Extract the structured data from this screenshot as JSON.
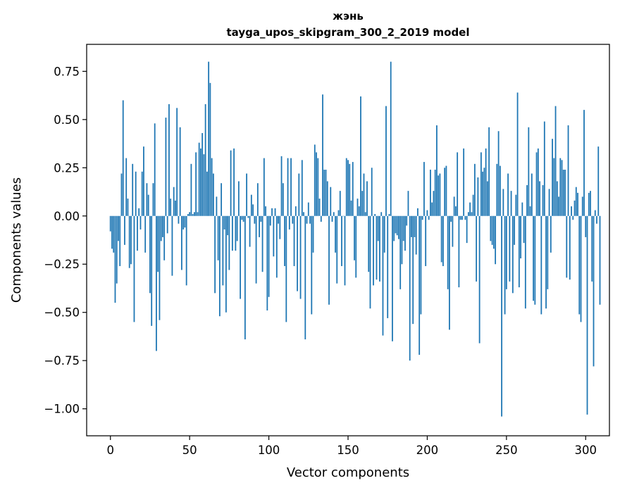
{
  "chart_data": {
    "type": "bar",
    "title": "жэнь",
    "subtitle": "tayga_upos_skipgram_300_2_2019 model",
    "xlabel": "Vector components",
    "ylabel": "Components values",
    "xlim": [
      -15,
      315
    ],
    "ylim": [
      -1.14,
      0.89
    ],
    "x_ticks": [
      0,
      50,
      100,
      150,
      200,
      250,
      300
    ],
    "y_ticks": [
      -1.0,
      -0.75,
      -0.5,
      -0.25,
      0.0,
      0.25,
      0.5,
      0.75
    ],
    "y_tick_labels": [
      "−1.00",
      "−0.75",
      "−0.50",
      "−0.25",
      "0.00",
      "0.25",
      "0.50",
      "0.75"
    ],
    "bar_color": "#1f77b4",
    "grid": false,
    "values": [
      -0.08,
      -0.17,
      -0.19,
      -0.45,
      -0.35,
      -0.13,
      -0.26,
      0.22,
      0.6,
      -0.15,
      0.3,
      0.09,
      -0.27,
      -0.25,
      0.27,
      -0.55,
      0.23,
      -0.18,
      0.04,
      -0.07,
      0.23,
      0.36,
      -0.19,
      0.17,
      0.11,
      -0.4,
      -0.57,
      0.17,
      0.48,
      -0.7,
      -0.29,
      -0.54,
      -0.13,
      -0.11,
      -0.23,
      0.51,
      -0.09,
      0.58,
      0.09,
      -0.31,
      0.15,
      0.08,
      0.56,
      -0.04,
      0.46,
      -0.28,
      -0.07,
      -0.06,
      -0.36,
      0.01,
      0.02,
      0.27,
      0.01,
      0.02,
      0.33,
      0.02,
      0.38,
      0.35,
      0.43,
      0.32,
      0.58,
      0.23,
      0.8,
      0.69,
      0.3,
      0.22,
      -0.4,
      0.1,
      -0.23,
      -0.52,
      0.17,
      -0.36,
      -0.07,
      -0.5,
      -0.1,
      -0.28,
      0.34,
      -0.18,
      0.35,
      -0.18,
      -0.13,
      0.18,
      -0.43,
      -0.02,
      -0.03,
      -0.64,
      0.22,
      -0.01,
      -0.16,
      0.11,
      0.06,
      -0.04,
      -0.35,
      0.17,
      -0.11,
      -0.03,
      -0.29,
      0.3,
      0.05,
      -0.49,
      -0.42,
      -0.05,
      0.04,
      -0.21,
      0.04,
      -0.32,
      -0.04,
      -0.12,
      0.31,
      0.17,
      -0.26,
      -0.55,
      0.3,
      -0.07,
      0.3,
      -0.04,
      -0.26,
      0.05,
      -0.39,
      0.22,
      -0.43,
      0.29,
      0.02,
      -0.64,
      -0.04,
      0.07,
      -0.04,
      -0.51,
      -0.19,
      0.37,
      0.33,
      0.3,
      0.09,
      -0.03,
      0.63,
      0.24,
      0.24,
      0.18,
      -0.46,
      0.15,
      -0.03,
      0.02,
      -0.19,
      -0.35,
      0.03,
      0.13,
      -0.26,
      0.0,
      -0.36,
      0.3,
      0.29,
      0.27,
      0.08,
      0.28,
      -0.23,
      -0.32,
      0.09,
      0.05,
      0.62,
      0.13,
      0.22,
      0.02,
      0.18,
      -0.29,
      -0.48,
      0.25,
      -0.36,
      0.01,
      -0.33,
      -0.13,
      -0.34,
      0.02,
      -0.62,
      -0.19,
      0.57,
      -0.53,
      0.01,
      0.8,
      -0.65,
      -0.13,
      -0.09,
      -0.1,
      -0.12,
      -0.38,
      -0.25,
      -0.13,
      -0.18,
      -0.05,
      0.13,
      -0.75,
      -0.11,
      -0.56,
      -0.11,
      -0.2,
      0.04,
      -0.72,
      -0.51,
      -0.02,
      0.28,
      -0.26,
      0.03,
      -0.02,
      0.24,
      0.07,
      0.13,
      0.24,
      0.47,
      0.21,
      0.22,
      -0.24,
      -0.26,
      0.25,
      0.26,
      -0.38,
      -0.59,
      -0.03,
      -0.16,
      0.1,
      0.05,
      0.33,
      -0.37,
      -0.02,
      -0.02,
      0.35,
      -0.02,
      -0.14,
      0.02,
      0.07,
      0.02,
      0.11,
      0.27,
      -0.34,
      0.2,
      -0.66,
      0.33,
      0.23,
      0.25,
      0.35,
      0.18,
      0.46,
      -0.13,
      -0.15,
      -0.17,
      -0.25,
      0.27,
      0.44,
      0.26,
      -1.04,
      0.14,
      -0.51,
      -0.38,
      0.22,
      -0.34,
      0.13,
      -0.4,
      -0.15,
      0.11,
      0.64,
      -0.37,
      -0.22,
      0.07,
      -0.14,
      -0.48,
      0.16,
      0.46,
      0.05,
      0.22,
      -0.44,
      -0.46,
      0.33,
      0.35,
      0.18,
      -0.51,
      0.16,
      0.49,
      -0.48,
      -0.38,
      0.14,
      -0.19,
      0.4,
      0.3,
      0.57,
      0.18,
      0.1,
      0.3,
      0.29,
      0.24,
      0.24,
      -0.32,
      0.47,
      -0.33,
      0.05,
      -0.02,
      0.08,
      0.15,
      0.12,
      -0.51,
      -0.55,
      0.1,
      0.55,
      -0.11,
      -1.03,
      0.12,
      0.13,
      -0.34,
      -0.78,
      0.03,
      -0.04,
      0.36,
      -0.46
    ]
  }
}
